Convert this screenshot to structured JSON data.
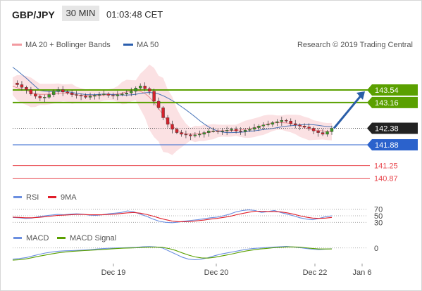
{
  "header": {
    "pair": "GBP/JPY",
    "timeframe": "30 MIN",
    "time": "01:03:48 CET"
  },
  "legend": {
    "ma20": "MA 20 + Bollinger Bands",
    "ma50": "MA 50",
    "credit": "Research © 2019 Trading Central",
    "rsi": "RSI",
    "rsi_ma": "9MA",
    "macd": "MACD",
    "macd_signal": "MACD Signal"
  },
  "colors": {
    "green": "#5aa000",
    "blue": "#2b62cc",
    "red": "#e8464d",
    "pink_band": "#f7c9cc",
    "dark": "#222222",
    "arrow": "#2a5ea8"
  },
  "chart_data": [
    {
      "type": "candlestick",
      "title": "GBP/JPY 30 MIN",
      "x_ticks": [
        "Dec 19",
        "Dec 20",
        "Dec 22",
        "Jan 6"
      ],
      "levels": [
        {
          "label": "143.54",
          "value": 143.54,
          "kind": "resistance",
          "color": "#5aa000"
        },
        {
          "label": "143.16",
          "value": 143.16,
          "kind": "resistance",
          "color": "#5aa000"
        },
        {
          "label": "142.38",
          "value": 142.38,
          "kind": "current",
          "color": "#222222"
        },
        {
          "label": "141.88",
          "value": 141.88,
          "kind": "support",
          "color": "#2b62cc"
        },
        {
          "label": "141.25",
          "value": 141.25,
          "kind": "support",
          "color": "#e8464d"
        },
        {
          "label": "140.87",
          "value": 140.87,
          "kind": "support",
          "color": "#e8464d"
        }
      ],
      "close_path": [
        143.75,
        143.7,
        143.62,
        143.55,
        143.42,
        143.35,
        143.3,
        143.32,
        143.4,
        143.5,
        143.55,
        143.48,
        143.45,
        143.4,
        143.38,
        143.36,
        143.32,
        143.35,
        143.38,
        143.4,
        143.42,
        143.38,
        143.36,
        143.4,
        143.42,
        143.45,
        143.5,
        143.6,
        143.66,
        143.58,
        143.5,
        143.2,
        143.0,
        142.7,
        142.5,
        142.35,
        142.25,
        142.2,
        142.18,
        142.15,
        142.18,
        142.2,
        142.25,
        142.3,
        142.3,
        142.28,
        142.3,
        142.32,
        142.35,
        142.3,
        142.28,
        142.32,
        142.35,
        142.4,
        142.45,
        142.48,
        142.5,
        142.55,
        142.58,
        142.62,
        142.6,
        142.52,
        142.48,
        142.45,
        142.42,
        142.38,
        142.3,
        142.25,
        142.2,
        142.28,
        142.38
      ],
      "series": [
        {
          "name": "MA 20 + Bollinger Bands"
        },
        {
          "name": "MA 50"
        }
      ],
      "arrow_target": 143.54,
      "ylim": [
        140.5,
        144.1
      ]
    },
    {
      "type": "line",
      "title": "RSI",
      "y_ticks": [
        70,
        50,
        30
      ],
      "series": [
        {
          "name": "RSI",
          "values": [
            45,
            44,
            42,
            43,
            47,
            50,
            52,
            54,
            53,
            55,
            56,
            55,
            52,
            51,
            53,
            56,
            58,
            60,
            65,
            62,
            55,
            48,
            40,
            33,
            30,
            29,
            31,
            34,
            36,
            38,
            41,
            44,
            46,
            50,
            55,
            62,
            66,
            68,
            66,
            60,
            63,
            66,
            60,
            55,
            50,
            44,
            40,
            38,
            42,
            47,
            50
          ]
        },
        {
          "name": "9MA",
          "values": [
            46,
            45,
            44,
            44,
            45,
            47,
            49,
            51,
            52,
            53,
            54,
            54,
            53,
            53,
            53,
            54,
            55,
            57,
            59,
            60,
            58,
            54,
            49,
            43,
            38,
            34,
            32,
            32,
            33,
            35,
            37,
            40,
            42,
            45,
            48,
            53,
            57,
            61,
            64,
            64,
            63,
            63,
            62,
            59,
            55,
            50,
            46,
            43,
            42,
            43,
            45
          ]
        }
      ],
      "ylim": [
        20,
        80
      ]
    },
    {
      "type": "line",
      "title": "MACD",
      "y_ticks": [
        0
      ],
      "series": [
        {
          "name": "MACD",
          "values": [
            -0.55,
            -0.52,
            -0.48,
            -0.4,
            -0.32,
            -0.25,
            -0.2,
            -0.16,
            -0.14,
            -0.13,
            -0.12,
            -0.1,
            -0.08,
            -0.05,
            -0.03,
            -0.01,
            0.0,
            0.01,
            0.02,
            0.03,
            0.06,
            0.07,
            0.05,
            0.0,
            -0.15,
            -0.3,
            -0.45,
            -0.55,
            -0.58,
            -0.55,
            -0.48,
            -0.38,
            -0.3,
            -0.24,
            -0.18,
            -0.12,
            -0.06,
            -0.02,
            0.0,
            0.02,
            0.04,
            0.06,
            0.08,
            0.05,
            0.02,
            -0.02,
            -0.06,
            -0.08,
            -0.06,
            -0.04
          ]
        },
        {
          "name": "MACD Signal",
          "values": [
            -0.6,
            -0.58,
            -0.54,
            -0.48,
            -0.41,
            -0.35,
            -0.29,
            -0.24,
            -0.2,
            -0.17,
            -0.15,
            -0.13,
            -0.11,
            -0.09,
            -0.07,
            -0.05,
            -0.03,
            -0.01,
            0.0,
            0.01,
            0.03,
            0.04,
            0.04,
            0.03,
            -0.03,
            -0.12,
            -0.24,
            -0.35,
            -0.44,
            -0.49,
            -0.5,
            -0.46,
            -0.4,
            -0.34,
            -0.27,
            -0.2,
            -0.14,
            -0.09,
            -0.05,
            -0.02,
            0.01,
            0.03,
            0.05,
            0.05,
            0.04,
            0.01,
            -0.02,
            -0.05,
            -0.05,
            -0.05
          ]
        }
      ],
      "ylim": [
        -0.7,
        0.2
      ]
    }
  ]
}
